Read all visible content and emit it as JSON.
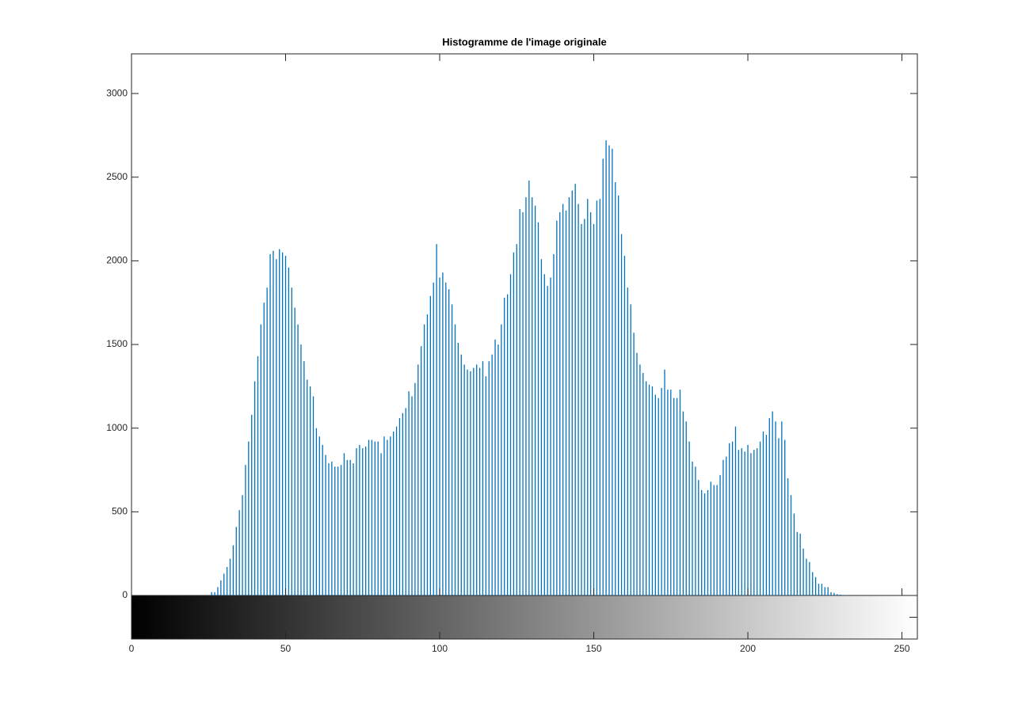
{
  "chart_data": {
    "type": "bar",
    "title": "Histogramme de l'image originale",
    "x": [
      0,
      1,
      2,
      3,
      4,
      5,
      6,
      7,
      8,
      9,
      10,
      11,
      12,
      13,
      14,
      15,
      16,
      17,
      18,
      19,
      20,
      21,
      22,
      23,
      24,
      25,
      26,
      27,
      28,
      29,
      30,
      31,
      32,
      33,
      34,
      35,
      36,
      37,
      38,
      39,
      40,
      41,
      42,
      43,
      44,
      45,
      46,
      47,
      48,
      49,
      50,
      51,
      52,
      53,
      54,
      55,
      56,
      57,
      58,
      59,
      60,
      61,
      62,
      63,
      64,
      65,
      66,
      67,
      68,
      69,
      70,
      71,
      72,
      73,
      74,
      75,
      76,
      77,
      78,
      79,
      80,
      81,
      82,
      83,
      84,
      85,
      86,
      87,
      88,
      89,
      90,
      91,
      92,
      93,
      94,
      95,
      96,
      97,
      98,
      99,
      100,
      101,
      102,
      103,
      104,
      105,
      106,
      107,
      108,
      109,
      110,
      111,
      112,
      113,
      114,
      115,
      116,
      117,
      118,
      119,
      120,
      121,
      122,
      123,
      124,
      125,
      126,
      127,
      128,
      129,
      130,
      131,
      132,
      133,
      134,
      135,
      136,
      137,
      138,
      139,
      140,
      141,
      142,
      143,
      144,
      145,
      146,
      147,
      148,
      149,
      150,
      151,
      152,
      153,
      154,
      155,
      156,
      157,
      158,
      159,
      160,
      161,
      162,
      163,
      164,
      165,
      166,
      167,
      168,
      169,
      170,
      171,
      172,
      173,
      174,
      175,
      176,
      177,
      178,
      179,
      180,
      181,
      182,
      183,
      184,
      185,
      186,
      187,
      188,
      189,
      190,
      191,
      192,
      193,
      194,
      195,
      196,
      197,
      198,
      199,
      200,
      201,
      202,
      203,
      204,
      205,
      206,
      207,
      208,
      209,
      210,
      211,
      212,
      213,
      214,
      215,
      216,
      217,
      218,
      219,
      220,
      221,
      222,
      223,
      224,
      225,
      226,
      227,
      228,
      229,
      230,
      231,
      232,
      233,
      234,
      235,
      236,
      237,
      238,
      239,
      240,
      241,
      242,
      243,
      244,
      245,
      246,
      247,
      248,
      249,
      250,
      251,
      252,
      253,
      254,
      255
    ],
    "values": [
      0,
      0,
      0,
      0,
      0,
      0,
      0,
      0,
      0,
      0,
      0,
      0,
      0,
      0,
      0,
      0,
      0,
      0,
      0,
      0,
      0,
      0,
      0,
      0,
      0,
      0,
      20,
      20,
      50,
      90,
      130,
      170,
      220,
      300,
      410,
      510,
      600,
      780,
      920,
      1080,
      1280,
      1430,
      1620,
      1750,
      1840,
      2040,
      2060,
      2010,
      2070,
      2050,
      2030,
      1960,
      1840,
      1720,
      1620,
      1500,
      1400,
      1290,
      1250,
      1190,
      1000,
      950,
      900,
      840,
      790,
      800,
      770,
      770,
      780,
      850,
      810,
      810,
      790,
      880,
      900,
      880,
      890,
      930,
      930,
      920,
      920,
      850,
      950,
      930,
      950,
      980,
      1010,
      1060,
      1090,
      1120,
      1220,
      1190,
      1270,
      1380,
      1490,
      1620,
      1680,
      1790,
      1870,
      2100,
      1900,
      1930,
      1870,
      1830,
      1740,
      1620,
      1510,
      1440,
      1380,
      1350,
      1340,
      1360,
      1380,
      1360,
      1400,
      1310,
      1400,
      1440,
      1530,
      1500,
      1620,
      1780,
      1800,
      1920,
      2050,
      2100,
      2310,
      2290,
      2380,
      2480,
      2380,
      2330,
      2230,
      2010,
      1920,
      1850,
      1900,
      2040,
      2240,
      2290,
      2340,
      2300,
      2380,
      2420,
      2460,
      2340,
      2220,
      2250,
      2370,
      2290,
      2220,
      2360,
      2370,
      2610,
      2720,
      2690,
      2670,
      2470,
      2390,
      2160,
      2030,
      1840,
      1740,
      1570,
      1450,
      1380,
      1330,
      1280,
      1260,
      1250,
      1200,
      1180,
      1240,
      1350,
      1230,
      1230,
      1180,
      1180,
      1230,
      1100,
      1040,
      920,
      800,
      770,
      690,
      630,
      610,
      630,
      680,
      660,
      660,
      720,
      810,
      830,
      910,
      920,
      1010,
      870,
      880,
      860,
      900,
      850,
      870,
      880,
      920,
      980,
      960,
      1060,
      1100,
      1040,
      940,
      1040,
      930,
      700,
      600,
      490,
      380,
      370,
      280,
      220,
      200,
      140,
      110,
      70,
      70,
      50,
      50,
      20,
      15,
      8,
      5,
      3,
      2,
      0,
      0,
      0,
      0,
      0,
      0,
      0,
      0,
      0,
      0,
      0,
      0,
      0,
      0,
      0,
      0,
      0,
      0,
      0,
      0,
      0,
      0,
      0
    ],
    "color": "#0072bd",
    "xlim": [
      0,
      255
    ],
    "xticks": [
      0,
      50,
      100,
      150,
      200,
      250
    ],
    "ylim": [
      0,
      3237
    ],
    "yticks": [
      0,
      500,
      1000,
      1500,
      2000,
      2500,
      3000
    ]
  }
}
